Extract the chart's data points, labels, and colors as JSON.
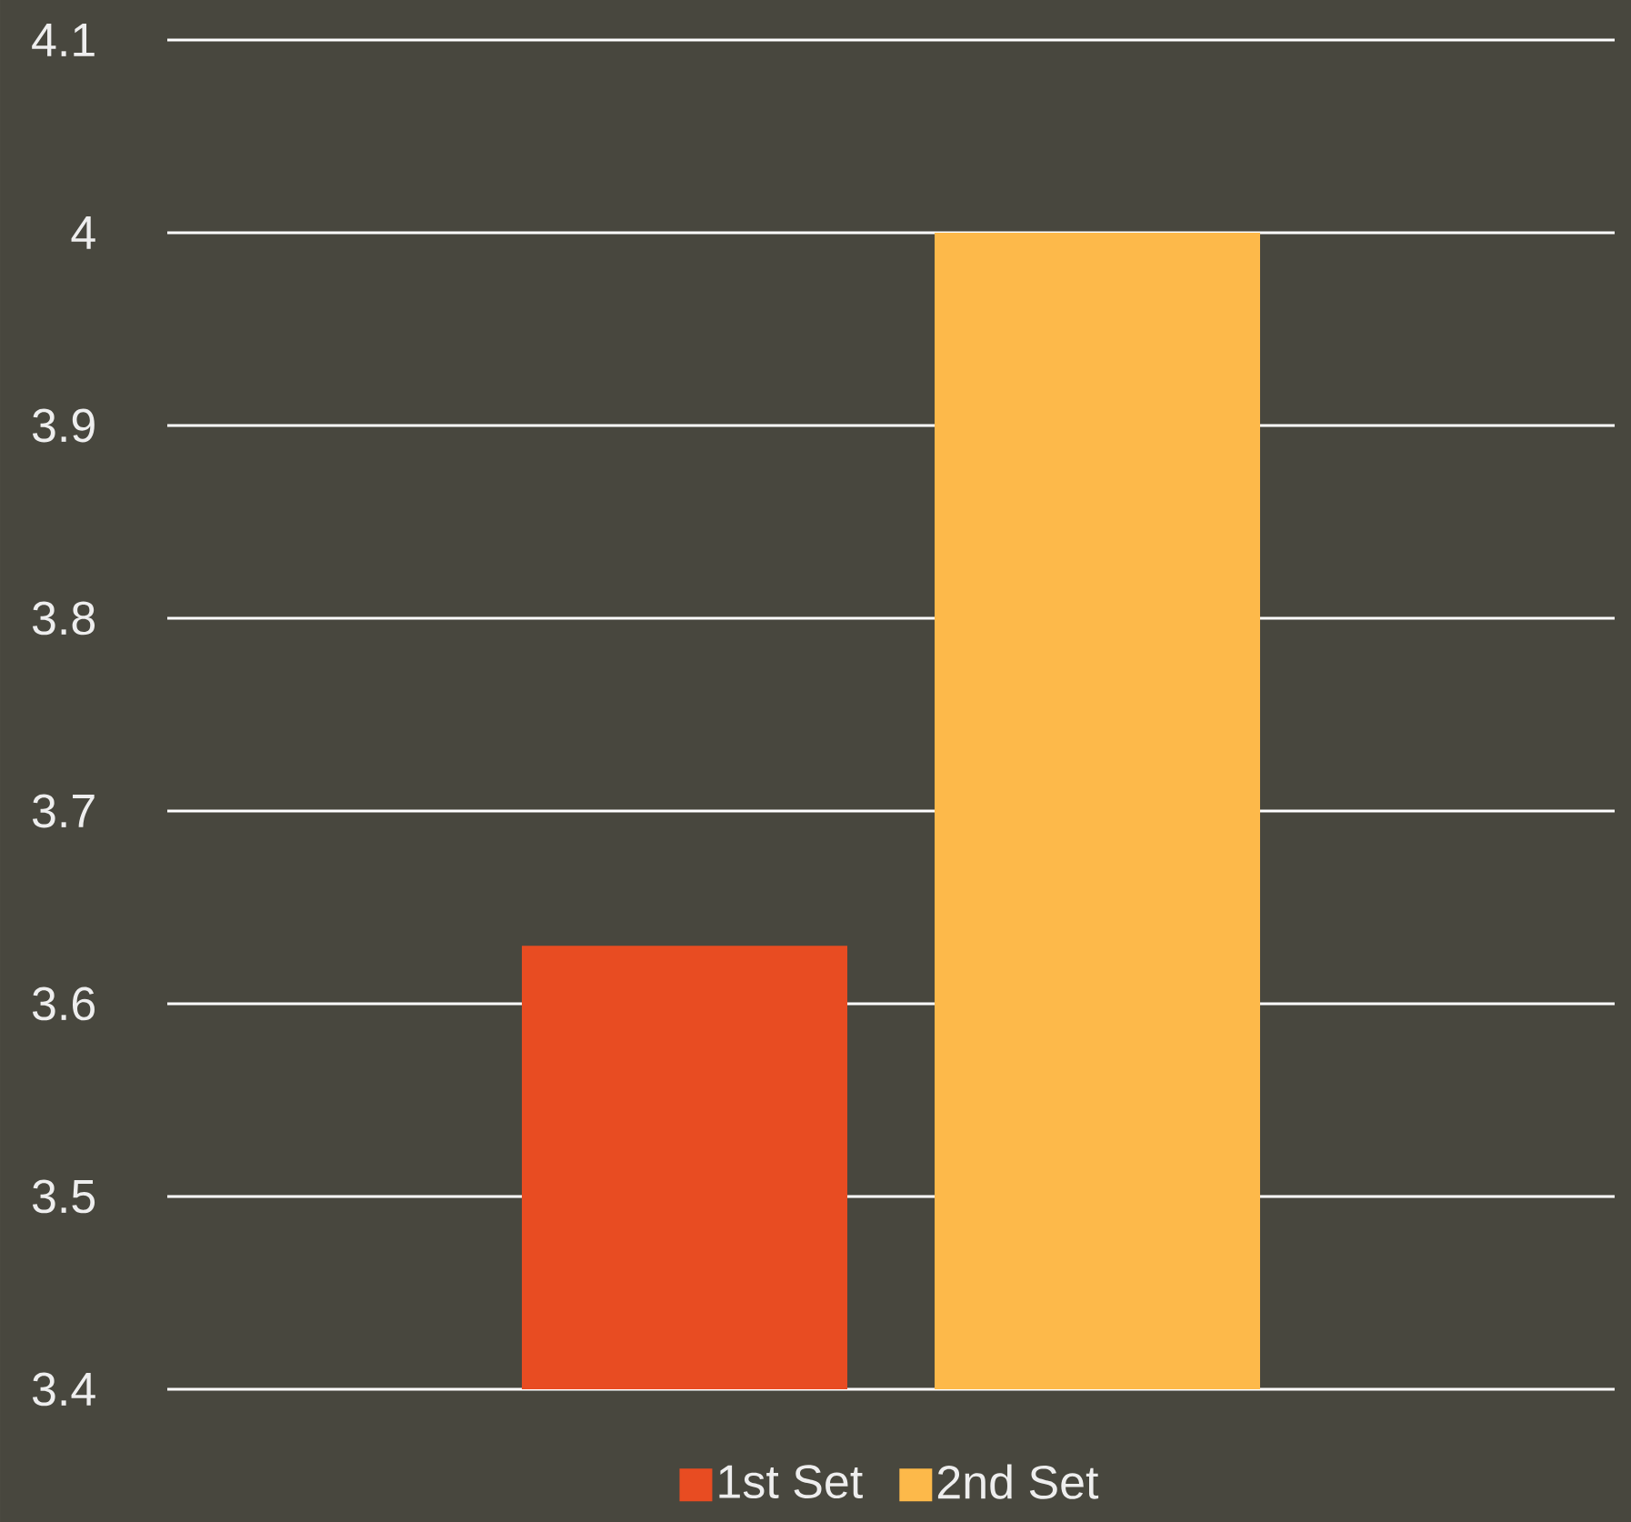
{
  "chart_data": {
    "type": "bar",
    "categories": [
      null
    ],
    "series": [
      {
        "name": "1st Set",
        "color": "#e84c22",
        "values": [
          3.63
        ]
      },
      {
        "name": "2nd Set",
        "color": "#fdb94a",
        "values": [
          4.0
        ]
      }
    ],
    "ylim": [
      3.4,
      4.1
    ],
    "yticks": [
      3.4,
      3.5,
      3.6,
      3.7,
      3.8,
      3.9,
      4,
      4.1
    ],
    "grid": "y",
    "legend": "bottom"
  }
}
